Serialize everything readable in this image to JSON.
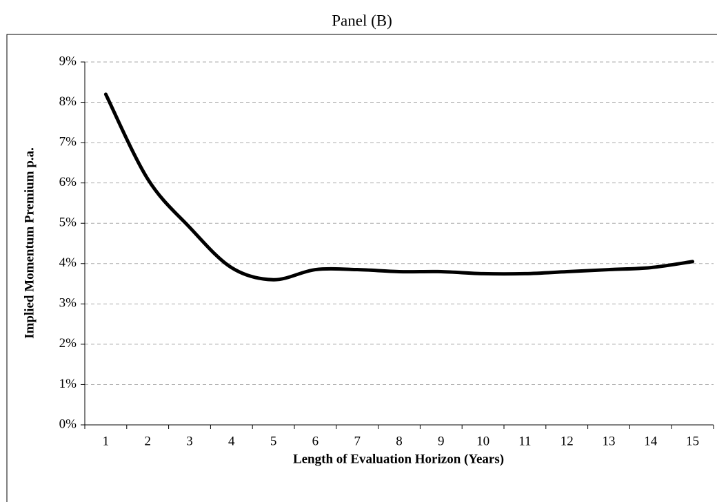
{
  "chart_data": {
    "type": "line",
    "title": "Panel (B)",
    "x_label": "Length of Evaluation Horizon (Years)",
    "y_label": "Implied Momentum Premium p.a.",
    "categories": [
      "1",
      "2",
      "3",
      "4",
      "5",
      "6",
      "7",
      "8",
      "9",
      "10",
      "11",
      "12",
      "13",
      "14",
      "15"
    ],
    "series": [
      {
        "name": "Implied Momentum Premium",
        "color": "#000000",
        "values": [
          8.2,
          6.1,
          4.9,
          3.9,
          3.6,
          3.85,
          3.85,
          3.8,
          3.8,
          3.75,
          3.75,
          3.8,
          3.85,
          3.9,
          4.05
        ]
      }
    ],
    "ylim": [
      0,
      9
    ],
    "yticks": [
      {
        "value": 0,
        "label": "0%"
      },
      {
        "value": 1,
        "label": "1%"
      },
      {
        "value": 2,
        "label": "2%"
      },
      {
        "value": 3,
        "label": "3%"
      },
      {
        "value": 4,
        "label": "4%"
      },
      {
        "value": 5,
        "label": "5%"
      },
      {
        "value": 6,
        "label": "6%"
      },
      {
        "value": 7,
        "label": "7%"
      },
      {
        "value": 8,
        "label": "8%"
      },
      {
        "value": 9,
        "label": "9%"
      }
    ],
    "grid": true,
    "smooth": true
  }
}
